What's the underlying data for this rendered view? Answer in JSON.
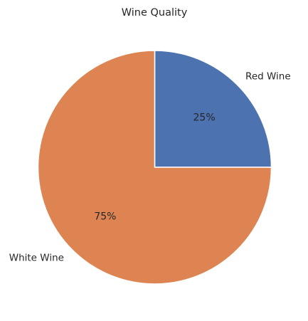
{
  "chart_data": {
    "type": "pie",
    "title": "Wine Quality",
    "categories": [
      "Red Wine",
      "White Wine"
    ],
    "values": [
      25,
      75
    ],
    "percent_labels": [
      "25%",
      "75%"
    ],
    "colors": [
      "#4c72b0",
      "#dd8452"
    ],
    "start_angle": "right, counterclockwise",
    "legend": "none"
  }
}
